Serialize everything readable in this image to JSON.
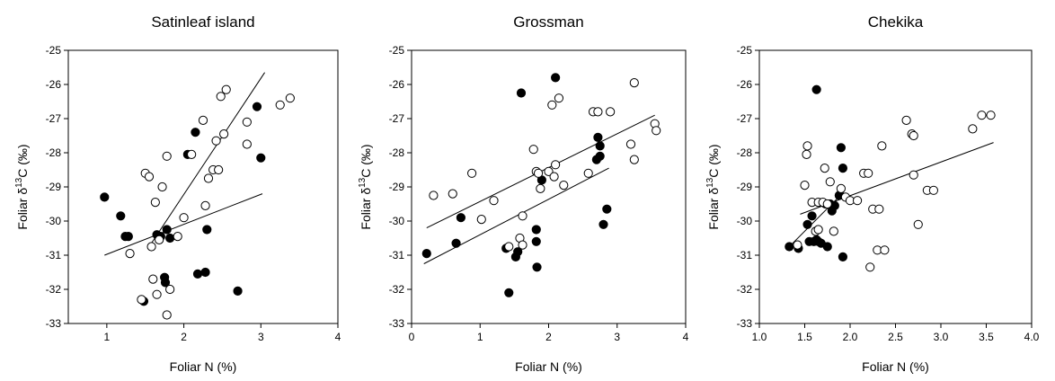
{
  "chart_data": [
    {
      "type": "scatter",
      "title": "Satinleaf island",
      "xlabel": "Foliar N (%)",
      "ylabel": "Foliar δ13C (‰)",
      "xlim": [
        0.5,
        4
      ],
      "ylim": [
        -33,
        -25
      ],
      "x_ticks": [
        "1",
        "2",
        "3",
        "4"
      ],
      "y_ticks": [
        "-25",
        "-26",
        "-27",
        "-28",
        "-29",
        "-30",
        "-31",
        "-32",
        "-33"
      ],
      "series": [
        {
          "marker": "filled",
          "points": [
            [
              0.97,
              -29.3
            ],
            [
              1.18,
              -29.85
            ],
            [
              1.24,
              -30.45
            ],
            [
              1.28,
              -30.45
            ],
            [
              1.48,
              -32.35
            ],
            [
              1.65,
              -30.4
            ],
            [
              1.7,
              -30.45
            ],
            [
              1.75,
              -31.65
            ],
            [
              1.76,
              -31.8
            ],
            [
              1.78,
              -30.25
            ],
            [
              1.82,
              -30.5
            ],
            [
              2.05,
              -28.05
            ],
            [
              2.15,
              -27.4
            ],
            [
              2.18,
              -31.55
            ],
            [
              2.28,
              -31.5
            ],
            [
              2.3,
              -30.25
            ],
            [
              2.7,
              -32.05
            ],
            [
              2.95,
              -26.65
            ],
            [
              3.0,
              -28.15
            ]
          ],
          "fit": [
            [
              0.97,
              -31.0
            ],
            [
              3.02,
              -29.2
            ]
          ]
        },
        {
          "marker": "open",
          "points": [
            [
              1.3,
              -30.95
            ],
            [
              1.45,
              -32.3
            ],
            [
              1.5,
              -28.6
            ],
            [
              1.55,
              -28.7
            ],
            [
              1.58,
              -30.75
            ],
            [
              1.6,
              -31.7
            ],
            [
              1.63,
              -29.45
            ],
            [
              1.65,
              -32.15
            ],
            [
              1.68,
              -30.55
            ],
            [
              1.72,
              -29.0
            ],
            [
              1.78,
              -28.1
            ],
            [
              1.78,
              -32.75
            ],
            [
              1.82,
              -32.0
            ],
            [
              1.92,
              -30.45
            ],
            [
              2.0,
              -29.9
            ],
            [
              2.1,
              -28.05
            ],
            [
              2.25,
              -27.05
            ],
            [
              2.28,
              -29.55
            ],
            [
              2.32,
              -28.75
            ],
            [
              2.38,
              -28.5
            ],
            [
              2.42,
              -27.65
            ],
            [
              2.45,
              -28.5
            ],
            [
              2.48,
              -26.35
            ],
            [
              2.52,
              -27.45
            ],
            [
              2.55,
              -26.15
            ],
            [
              2.82,
              -27.1
            ],
            [
              2.82,
              -27.75
            ],
            [
              3.25,
              -26.6
            ],
            [
              3.38,
              -26.4
            ]
          ],
          "fit": [
            [
              1.55,
              -30.75
            ],
            [
              3.05,
              -25.65
            ]
          ]
        }
      ]
    },
    {
      "type": "scatter",
      "title": "Grossman",
      "xlabel": "Foliar N (%)",
      "ylabel": "Foliar δ13C (‰)",
      "xlim": [
        0,
        4
      ],
      "ylim": [
        -33,
        -25
      ],
      "x_ticks": [
        "0",
        "1",
        "2",
        "3",
        "4"
      ],
      "y_ticks": [
        "-25",
        "-26",
        "-27",
        "-28",
        "-29",
        "-30",
        "-31",
        "-32",
        "-33"
      ],
      "series": [
        {
          "marker": "filled",
          "points": [
            [
              0.22,
              -30.95
            ],
            [
              0.65,
              -30.65
            ],
            [
              0.72,
              -29.9
            ],
            [
              1.38,
              -30.8
            ],
            [
              1.42,
              -32.1
            ],
            [
              1.52,
              -31.05
            ],
            [
              1.55,
              -30.9
            ],
            [
              1.6,
              -26.25
            ],
            [
              1.82,
              -30.25
            ],
            [
              1.82,
              -30.6
            ],
            [
              1.83,
              -31.35
            ],
            [
              1.9,
              -28.8
            ],
            [
              2.1,
              -25.8
            ],
            [
              2.7,
              -28.2
            ],
            [
              2.72,
              -27.55
            ],
            [
              2.75,
              -27.8
            ],
            [
              2.75,
              -28.1
            ],
            [
              2.8,
              -30.1
            ],
            [
              2.85,
              -29.65
            ]
          ],
          "fit": [
            [
              0.18,
              -31.25
            ],
            [
              2.88,
              -28.45
            ]
          ]
        },
        {
          "marker": "open",
          "points": [
            [
              0.32,
              -29.25
            ],
            [
              0.6,
              -29.2
            ],
            [
              0.88,
              -28.6
            ],
            [
              1.02,
              -29.95
            ],
            [
              1.2,
              -29.4
            ],
            [
              1.42,
              -30.75
            ],
            [
              1.58,
              -30.5
            ],
            [
              1.62,
              -29.85
            ],
            [
              1.62,
              -30.7
            ],
            [
              1.78,
              -27.9
            ],
            [
              1.82,
              -28.55
            ],
            [
              1.85,
              -28.6
            ],
            [
              1.88,
              -29.05
            ],
            [
              2.0,
              -28.55
            ],
            [
              2.05,
              -26.6
            ],
            [
              2.08,
              -28.7
            ],
            [
              2.1,
              -28.35
            ],
            [
              2.15,
              -26.4
            ],
            [
              2.22,
              -28.95
            ],
            [
              2.58,
              -28.6
            ],
            [
              2.65,
              -26.8
            ],
            [
              2.72,
              -26.8
            ],
            [
              2.9,
              -26.8
            ],
            [
              3.2,
              -27.75
            ],
            [
              3.25,
              -25.95
            ],
            [
              3.25,
              -28.2
            ],
            [
              3.55,
              -27.15
            ],
            [
              3.57,
              -27.35
            ]
          ],
          "fit": [
            [
              0.22,
              -30.2
            ],
            [
              3.55,
              -26.9
            ]
          ]
        }
      ]
    },
    {
      "type": "scatter",
      "title": "Chekika",
      "xlabel": "Foliar N (%)",
      "ylabel": "Foliar δ13C (‰)",
      "xlim": [
        1,
        4
      ],
      "ylim": [
        -33,
        -25
      ],
      "x_ticks": [
        "1.0",
        "1.5",
        "2.0",
        "2.5",
        "3.0",
        "3.5",
        "4.0"
      ],
      "y_ticks": [
        "-25",
        "-26",
        "-27",
        "-28",
        "-29",
        "-30",
        "-31",
        "-32",
        "-33"
      ],
      "series": [
        {
          "marker": "filled",
          "points": [
            [
              1.33,
              -30.75
            ],
            [
              1.43,
              -30.8
            ],
            [
              1.53,
              -30.1
            ],
            [
              1.55,
              -30.6
            ],
            [
              1.58,
              -29.85
            ],
            [
              1.6,
              -30.6
            ],
            [
              1.63,
              -30.55
            ],
            [
              1.63,
              -26.15
            ],
            [
              1.65,
              -30.6
            ],
            [
              1.68,
              -30.65
            ],
            [
              1.73,
              -29.5
            ],
            [
              1.75,
              -30.75
            ],
            [
              1.78,
              -29.5
            ],
            [
              1.8,
              -29.7
            ],
            [
              1.83,
              -29.55
            ],
            [
              1.88,
              -29.25
            ],
            [
              1.9,
              -27.85
            ],
            [
              1.92,
              -28.45
            ],
            [
              1.92,
              -31.05
            ]
          ],
          "fit": [
            [
              1.33,
              -30.75
            ],
            [
              1.93,
              -29.15
            ]
          ]
        },
        {
          "marker": "open",
          "points": [
            [
              1.42,
              -30.7
            ],
            [
              1.5,
              -28.95
            ],
            [
              1.52,
              -28.05
            ],
            [
              1.53,
              -27.8
            ],
            [
              1.58,
              -29.45
            ],
            [
              1.62,
              -30.3
            ],
            [
              1.65,
              -29.45
            ],
            [
              1.65,
              -30.25
            ],
            [
              1.7,
              -29.45
            ],
            [
              1.72,
              -28.45
            ],
            [
              1.75,
              -29.5
            ],
            [
              1.78,
              -28.85
            ],
            [
              1.82,
              -30.3
            ],
            [
              1.9,
              -29.05
            ],
            [
              1.95,
              -29.3
            ],
            [
              2.0,
              -29.4
            ],
            [
              2.08,
              -29.4
            ],
            [
              2.15,
              -28.6
            ],
            [
              2.2,
              -28.6
            ],
            [
              2.22,
              -31.35
            ],
            [
              2.25,
              -29.65
            ],
            [
              2.3,
              -30.85
            ],
            [
              2.32,
              -29.65
            ],
            [
              2.35,
              -27.8
            ],
            [
              2.38,
              -30.85
            ],
            [
              2.62,
              -27.05
            ],
            [
              2.68,
              -27.45
            ],
            [
              2.7,
              -27.5
            ],
            [
              2.7,
              -28.65
            ],
            [
              2.75,
              -30.1
            ],
            [
              2.85,
              -29.1
            ],
            [
              2.92,
              -29.1
            ],
            [
              3.35,
              -27.3
            ],
            [
              3.45,
              -26.9
            ],
            [
              3.55,
              -26.9
            ]
          ],
          "fit": [
            [
              1.45,
              -29.8
            ],
            [
              3.58,
              -27.7
            ]
          ]
        }
      ]
    }
  ]
}
